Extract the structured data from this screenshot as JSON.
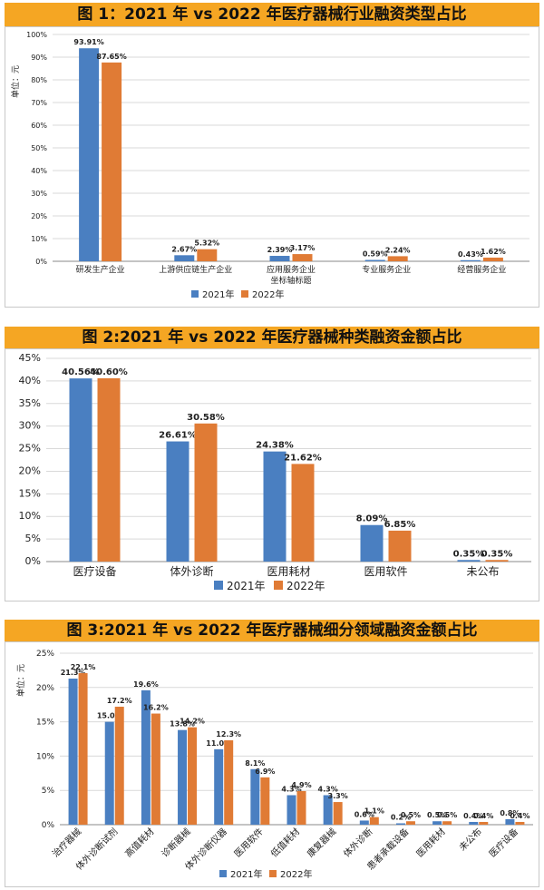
{
  "colors": {
    "y2021": "#4a7fc1",
    "y2022": "#e07b35",
    "header_bg": "#f5a623",
    "grid": "#d9d9d9",
    "axis_text": "#222222"
  },
  "legend": {
    "y2021": "2021年",
    "y2022": "2022年"
  },
  "chart_data": [
    {
      "type": "bar",
      "title": "图 1：2021 年 vs 2022 年医疗器械行业融资类型占比",
      "ylabel": "单位：元",
      "ylim": [
        0,
        100
      ],
      "yticks": [
        "0%",
        "10%",
        "20%",
        "30%",
        "40%",
        "50%",
        "60%",
        "70%",
        "80%",
        "90%",
        "100%"
      ],
      "categories": [
        [
          "研发生产企业"
        ],
        [
          "上游供应链生产企业"
        ],
        [
          "应用服务企业",
          "坐标轴标题"
        ],
        [
          "专业服务企业"
        ],
        [
          "经营服务企业"
        ]
      ],
      "series": [
        {
          "name": "2021年",
          "values": [
            93.91,
            2.67,
            2.39,
            0.59,
            0.43
          ],
          "labels": [
            "93.91%",
            "2.67%",
            "2.39%",
            "0.59%",
            "0.43%"
          ]
        },
        {
          "name": "2022年",
          "values": [
            87.65,
            5.32,
            3.17,
            2.24,
            1.62
          ],
          "labels": [
            "87.65%",
            "5.32%",
            "3.17%",
            "2.24%",
            "1.62%"
          ]
        }
      ]
    },
    {
      "type": "bar",
      "title": "图 2:2021 年 vs 2022 年医疗器械种类融资金额占比",
      "ylabel": "",
      "ylim": [
        0,
        45
      ],
      "yticks": [
        "0%",
        "5%",
        "10%",
        "15%",
        "20%",
        "25%",
        "30%",
        "35%",
        "40%",
        "45%"
      ],
      "categories": [
        [
          "医疗设备"
        ],
        [
          "体外诊断"
        ],
        [
          "医用耗材"
        ],
        [
          "医用软件"
        ],
        [
          "未公布"
        ]
      ],
      "series": [
        {
          "name": "2021年",
          "values": [
            40.56,
            26.61,
            24.38,
            8.09,
            0.35
          ],
          "labels": [
            "40.56%",
            "26.61%",
            "24.38%",
            "8.09%",
            "0.35%"
          ]
        },
        {
          "name": "2022年",
          "values": [
            40.6,
            30.58,
            21.62,
            6.85,
            0.35
          ],
          "labels": [
            "40.60%",
            "30.58%",
            "21.62%",
            "6.85%",
            "0.35%"
          ]
        }
      ]
    },
    {
      "type": "bar",
      "title": "图 3:2021 年 vs 2022 年医疗器械细分领域融资金额占比",
      "ylabel": "单位：元",
      "ylim": [
        0,
        25
      ],
      "yticks": [
        "0%",
        "5%",
        "10%",
        "15%",
        "20%",
        "25%"
      ],
      "categories": [
        [
          "治疗器械"
        ],
        [
          "体外诊断试剂"
        ],
        [
          "高值耗材"
        ],
        [
          "诊断器械"
        ],
        [
          "体外诊断仪器"
        ],
        [
          "医用软件"
        ],
        [
          "低值耗材"
        ],
        [
          "康复器械"
        ],
        [
          "体外诊断"
        ],
        [
          "患者承载设备"
        ],
        [
          "医用耗材"
        ],
        [
          "未公布"
        ],
        [
          "医疗设备"
        ]
      ],
      "series": [
        {
          "name": "2021年",
          "values": [
            21.3,
            15.0,
            19.6,
            13.8,
            11.0,
            8.1,
            4.3,
            4.3,
            0.6,
            0.2,
            0.5,
            0.4,
            0.8
          ],
          "labels": [
            "21.3%",
            "15.0%",
            "19.6%",
            "13.8%",
            "11.0%",
            "8.1%",
            "4.3%",
            "4.3%",
            "0.6%",
            "0.2%",
            "0.5%",
            "0.4%",
            "0.8%"
          ]
        },
        {
          "name": "2022年",
          "values": [
            22.1,
            17.2,
            16.2,
            14.2,
            12.3,
            6.9,
            4.9,
            3.3,
            1.1,
            0.5,
            0.5,
            0.4,
            0.4
          ],
          "labels": [
            "22.1%",
            "17.2%",
            "16.2%",
            "14.2%",
            "12.3%",
            "6.9%",
            "4.9%",
            "3.3%",
            "1.1%",
            "0.5%",
            "0.5%",
            "0.4%",
            "0.4%"
          ]
        }
      ]
    }
  ]
}
